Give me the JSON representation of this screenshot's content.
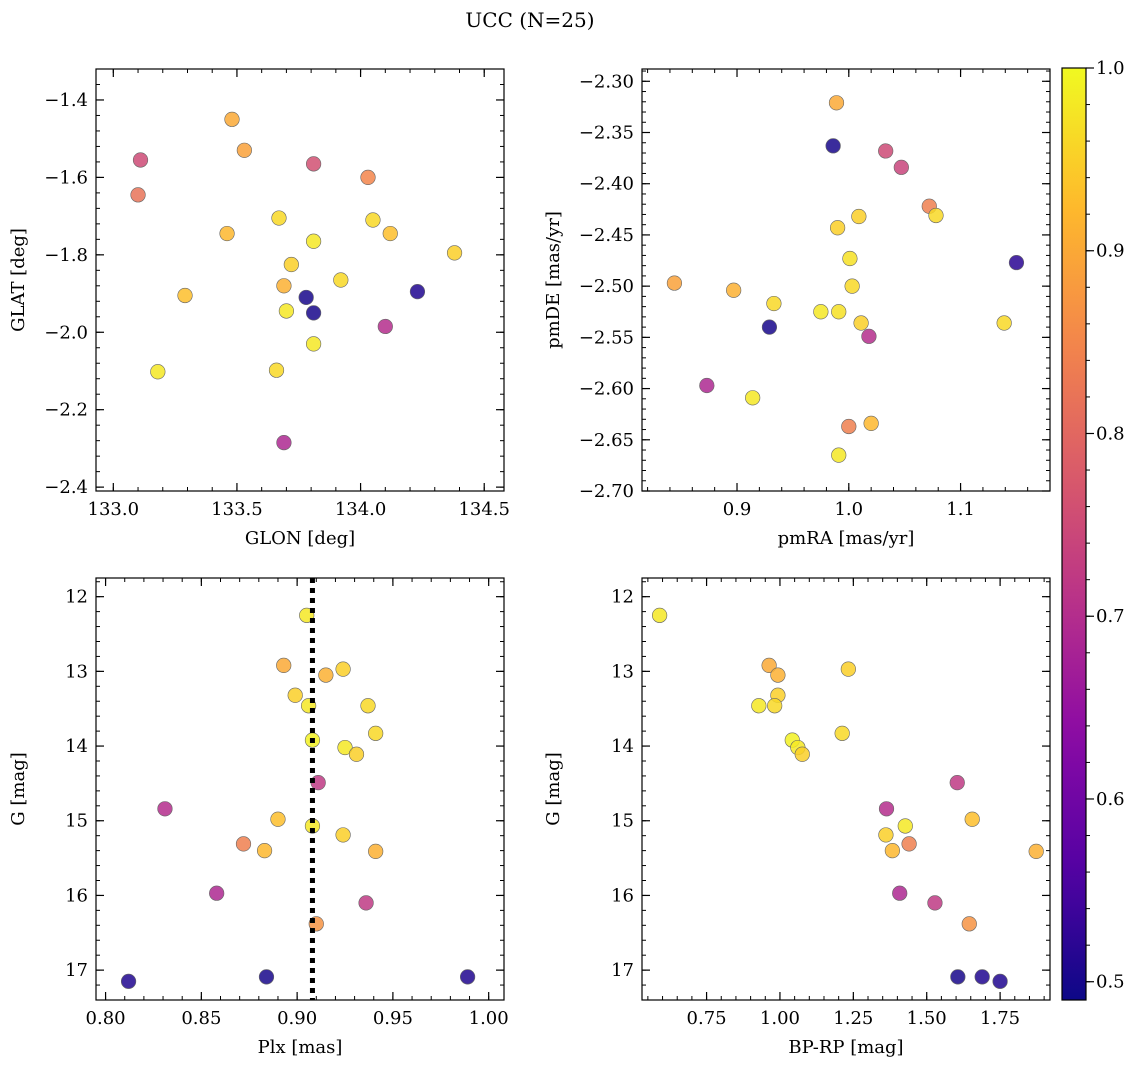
{
  "figure": {
    "title": "UCC (N=25)"
  },
  "colorbar": {
    "vmin": 0.49,
    "vmax": 1.0,
    "ticks": [
      0.5,
      0.6,
      0.7,
      0.8,
      0.9,
      1.0
    ],
    "ticklabels": [
      "0.5",
      "0.6",
      "0.7",
      "0.8",
      "0.9",
      "1.0"
    ],
    "colormap": "plasma"
  },
  "chart_data": [
    {
      "type": "scatter",
      "xlabel": "GLON [deg]",
      "ylabel": "GLAT [deg]",
      "xlim": [
        132.93,
        134.58
      ],
      "ylim": [
        -2.41,
        -1.32
      ],
      "xticks": [
        133.0,
        133.5,
        134.0,
        134.5
      ],
      "xticklabels": [
        "133.0",
        "133.5",
        "134.0",
        "134.5"
      ],
      "yticks": [
        -1.4,
        -1.6,
        -1.8,
        -2.0,
        -2.2,
        -2.4
      ],
      "yticklabels": [
        "−1.4",
        "−1.6",
        "−1.8",
        "−2.0",
        "−2.2",
        "−2.4"
      ],
      "points": [
        {
          "x": 133.48,
          "y": -1.45,
          "c": 0.9
        },
        {
          "x": 133.53,
          "y": -1.53,
          "c": 0.89
        },
        {
          "x": 133.11,
          "y": -1.555,
          "c": 0.75
        },
        {
          "x": 133.81,
          "y": -1.565,
          "c": 0.76
        },
        {
          "x": 134.03,
          "y": -1.6,
          "c": 0.85
        },
        {
          "x": 133.1,
          "y": -1.645,
          "c": 0.82
        },
        {
          "x": 133.67,
          "y": -1.705,
          "c": 0.96
        },
        {
          "x": 134.05,
          "y": -1.71,
          "c": 0.96
        },
        {
          "x": 133.46,
          "y": -1.745,
          "c": 0.92
        },
        {
          "x": 134.12,
          "y": -1.745,
          "c": 0.93
        },
        {
          "x": 133.81,
          "y": -1.765,
          "c": 0.98
        },
        {
          "x": 134.38,
          "y": -1.795,
          "c": 0.95
        },
        {
          "x": 133.72,
          "y": -1.825,
          "c": 0.95
        },
        {
          "x": 133.92,
          "y": -1.865,
          "c": 0.96
        },
        {
          "x": 133.69,
          "y": -1.88,
          "c": 0.91
        },
        {
          "x": 134.23,
          "y": -1.895,
          "c": 0.51
        },
        {
          "x": 133.29,
          "y": -1.905,
          "c": 0.93
        },
        {
          "x": 133.78,
          "y": -1.91,
          "c": 0.5
        },
        {
          "x": 133.7,
          "y": -1.945,
          "c": 0.98
        },
        {
          "x": 133.81,
          "y": -1.95,
          "c": 0.5
        },
        {
          "x": 134.1,
          "y": -1.985,
          "c": 0.7
        },
        {
          "x": 133.81,
          "y": -2.03,
          "c": 0.98
        },
        {
          "x": 133.66,
          "y": -2.098,
          "c": 0.96
        },
        {
          "x": 133.18,
          "y": -2.102,
          "c": 0.98
        },
        {
          "x": 133.69,
          "y": -2.285,
          "c": 0.69
        }
      ]
    },
    {
      "type": "scatter",
      "xlabel": "pmRA [mas/yr]",
      "ylabel": "pmDE [mas/yr]",
      "xlim": [
        0.815,
        1.18
      ],
      "ylim": [
        -2.7,
        -2.288
      ],
      "xticks": [
        0.9,
        1.0,
        1.1
      ],
      "xticklabels": [
        "0.9",
        "1.0",
        "1.1"
      ],
      "yticks": [
        -2.3,
        -2.35,
        -2.4,
        -2.45,
        -2.5,
        -2.55,
        -2.6,
        -2.65,
        -2.7
      ],
      "yticklabels": [
        "−2.30",
        "−2.35",
        "−2.40",
        "−2.45",
        "−2.50",
        "−2.55",
        "−2.60",
        "−2.65",
        "−2.70"
      ],
      "points": [
        {
          "x": 0.989,
          "y": -2.321,
          "c": 0.9
        },
        {
          "x": 0.986,
          "y": -2.363,
          "c": 0.5
        },
        {
          "x": 1.033,
          "y": -2.368,
          "c": 0.75
        },
        {
          "x": 1.047,
          "y": -2.384,
          "c": 0.74
        },
        {
          "x": 1.072,
          "y": -2.422,
          "c": 0.84
        },
        {
          "x": 1.078,
          "y": -2.431,
          "c": 0.96
        },
        {
          "x": 1.009,
          "y": -2.432,
          "c": 0.95
        },
        {
          "x": 0.99,
          "y": -2.443,
          "c": 0.95
        },
        {
          "x": 1.001,
          "y": -2.473,
          "c": 0.97
        },
        {
          "x": 1.15,
          "y": -2.477,
          "c": 0.52
        },
        {
          "x": 0.844,
          "y": -2.497,
          "c": 0.89
        },
        {
          "x": 1.003,
          "y": -2.5,
          "c": 0.96
        },
        {
          "x": 0.897,
          "y": -2.504,
          "c": 0.91
        },
        {
          "x": 0.933,
          "y": -2.517,
          "c": 0.96
        },
        {
          "x": 0.975,
          "y": -2.525,
          "c": 0.98
        },
        {
          "x": 0.991,
          "y": -2.525,
          "c": 0.97
        },
        {
          "x": 1.011,
          "y": -2.536,
          "c": 0.95
        },
        {
          "x": 1.139,
          "y": -2.536,
          "c": 0.96
        },
        {
          "x": 0.929,
          "y": -2.54,
          "c": 0.5
        },
        {
          "x": 1.018,
          "y": -2.549,
          "c": 0.7
        },
        {
          "x": 0.873,
          "y": -2.597,
          "c": 0.69
        },
        {
          "x": 0.914,
          "y": -2.609,
          "c": 0.98
        },
        {
          "x": 1.02,
          "y": -2.634,
          "c": 0.92
        },
        {
          "x": 1.0,
          "y": -2.637,
          "c": 0.84
        },
        {
          "x": 0.991,
          "y": -2.665,
          "c": 0.98
        }
      ]
    },
    {
      "type": "scatter",
      "xlabel": "Plx [mas]",
      "ylabel": "G [mag]",
      "xlim": [
        0.795,
        1.008
      ],
      "ylim": [
        17.4,
        11.75
      ],
      "y_inverted": true,
      "vline": 0.908,
      "xticks": [
        0.8,
        0.85,
        0.9,
        0.95,
        1.0
      ],
      "xticklabels": [
        "0.80",
        "0.85",
        "0.90",
        "0.95",
        "1.00"
      ],
      "yticks": [
        12,
        13,
        14,
        15,
        16,
        17
      ],
      "yticklabels": [
        "12",
        "13",
        "14",
        "15",
        "16",
        "17"
      ],
      "points": [
        {
          "x": 0.905,
          "y": 12.25,
          "c": 0.98
        },
        {
          "x": 0.893,
          "y": 12.92,
          "c": 0.9
        },
        {
          "x": 0.924,
          "y": 12.97,
          "c": 0.95
        },
        {
          "x": 0.915,
          "y": 13.05,
          "c": 0.91
        },
        {
          "x": 0.899,
          "y": 13.32,
          "c": 0.95
        },
        {
          "x": 0.906,
          "y": 13.46,
          "c": 0.98
        },
        {
          "x": 0.937,
          "y": 13.46,
          "c": 0.96
        },
        {
          "x": 0.941,
          "y": 13.83,
          "c": 0.96
        },
        {
          "x": 0.908,
          "y": 13.92,
          "c": 0.99
        },
        {
          "x": 0.925,
          "y": 14.02,
          "c": 0.98
        },
        {
          "x": 0.931,
          "y": 14.11,
          "c": 0.95
        },
        {
          "x": 0.911,
          "y": 14.49,
          "c": 0.72
        },
        {
          "x": 0.831,
          "y": 14.84,
          "c": 0.7
        },
        {
          "x": 0.89,
          "y": 14.98,
          "c": 0.93
        },
        {
          "x": 0.908,
          "y": 15.07,
          "c": 0.98
        },
        {
          "x": 0.924,
          "y": 15.19,
          "c": 0.95
        },
        {
          "x": 0.872,
          "y": 15.31,
          "c": 0.84
        },
        {
          "x": 0.883,
          "y": 15.4,
          "c": 0.92
        },
        {
          "x": 0.941,
          "y": 15.41,
          "c": 0.91
        },
        {
          "x": 0.858,
          "y": 15.97,
          "c": 0.69
        },
        {
          "x": 0.936,
          "y": 16.1,
          "c": 0.72
        },
        {
          "x": 0.91,
          "y": 16.38,
          "c": 0.87
        },
        {
          "x": 0.884,
          "y": 17.09,
          "c": 0.5
        },
        {
          "x": 0.989,
          "y": 17.09,
          "c": 0.51
        },
        {
          "x": 0.812,
          "y": 17.15,
          "c": 0.51
        }
      ]
    },
    {
      "type": "scatter",
      "xlabel": "BP-RP [mag]",
      "ylabel": "G [mag]",
      "xlim": [
        0.53,
        1.92
      ],
      "ylim": [
        17.4,
        11.75
      ],
      "y_inverted": true,
      "xticks": [
        0.75,
        1.0,
        1.25,
        1.5,
        1.75
      ],
      "xticklabels": [
        "0.75",
        "1.00",
        "1.25",
        "1.50",
        "1.75"
      ],
      "yticks": [
        12,
        13,
        14,
        15,
        16,
        17
      ],
      "yticklabels": [
        "12",
        "13",
        "14",
        "15",
        "16",
        "17"
      ],
      "points": [
        {
          "x": 0.59,
          "y": 12.25,
          "c": 0.98
        },
        {
          "x": 0.963,
          "y": 12.92,
          "c": 0.9
        },
        {
          "x": 1.233,
          "y": 12.97,
          "c": 0.95
        },
        {
          "x": 0.993,
          "y": 13.05,
          "c": 0.91
        },
        {
          "x": 0.993,
          "y": 13.32,
          "c": 0.95
        },
        {
          "x": 0.928,
          "y": 13.46,
          "c": 0.98
        },
        {
          "x": 0.982,
          "y": 13.46,
          "c": 0.96
        },
        {
          "x": 1.212,
          "y": 13.83,
          "c": 0.96
        },
        {
          "x": 1.042,
          "y": 13.92,
          "c": 0.99
        },
        {
          "x": 1.061,
          "y": 14.02,
          "c": 0.98
        },
        {
          "x": 1.076,
          "y": 14.11,
          "c": 0.95
        },
        {
          "x": 1.604,
          "y": 14.49,
          "c": 0.72
        },
        {
          "x": 1.363,
          "y": 14.84,
          "c": 0.7
        },
        {
          "x": 1.655,
          "y": 14.98,
          "c": 0.93
        },
        {
          "x": 1.427,
          "y": 15.07,
          "c": 0.98
        },
        {
          "x": 1.361,
          "y": 15.19,
          "c": 0.95
        },
        {
          "x": 1.44,
          "y": 15.31,
          "c": 0.84
        },
        {
          "x": 1.383,
          "y": 15.4,
          "c": 0.92
        },
        {
          "x": 1.873,
          "y": 15.41,
          "c": 0.91
        },
        {
          "x": 1.408,
          "y": 15.97,
          "c": 0.69
        },
        {
          "x": 1.528,
          "y": 16.1,
          "c": 0.72
        },
        {
          "x": 1.645,
          "y": 16.38,
          "c": 0.87
        },
        {
          "x": 1.606,
          "y": 17.09,
          "c": 0.5
        },
        {
          "x": 1.689,
          "y": 17.09,
          "c": 0.51
        },
        {
          "x": 1.75,
          "y": 17.15,
          "c": 0.51
        }
      ]
    }
  ]
}
